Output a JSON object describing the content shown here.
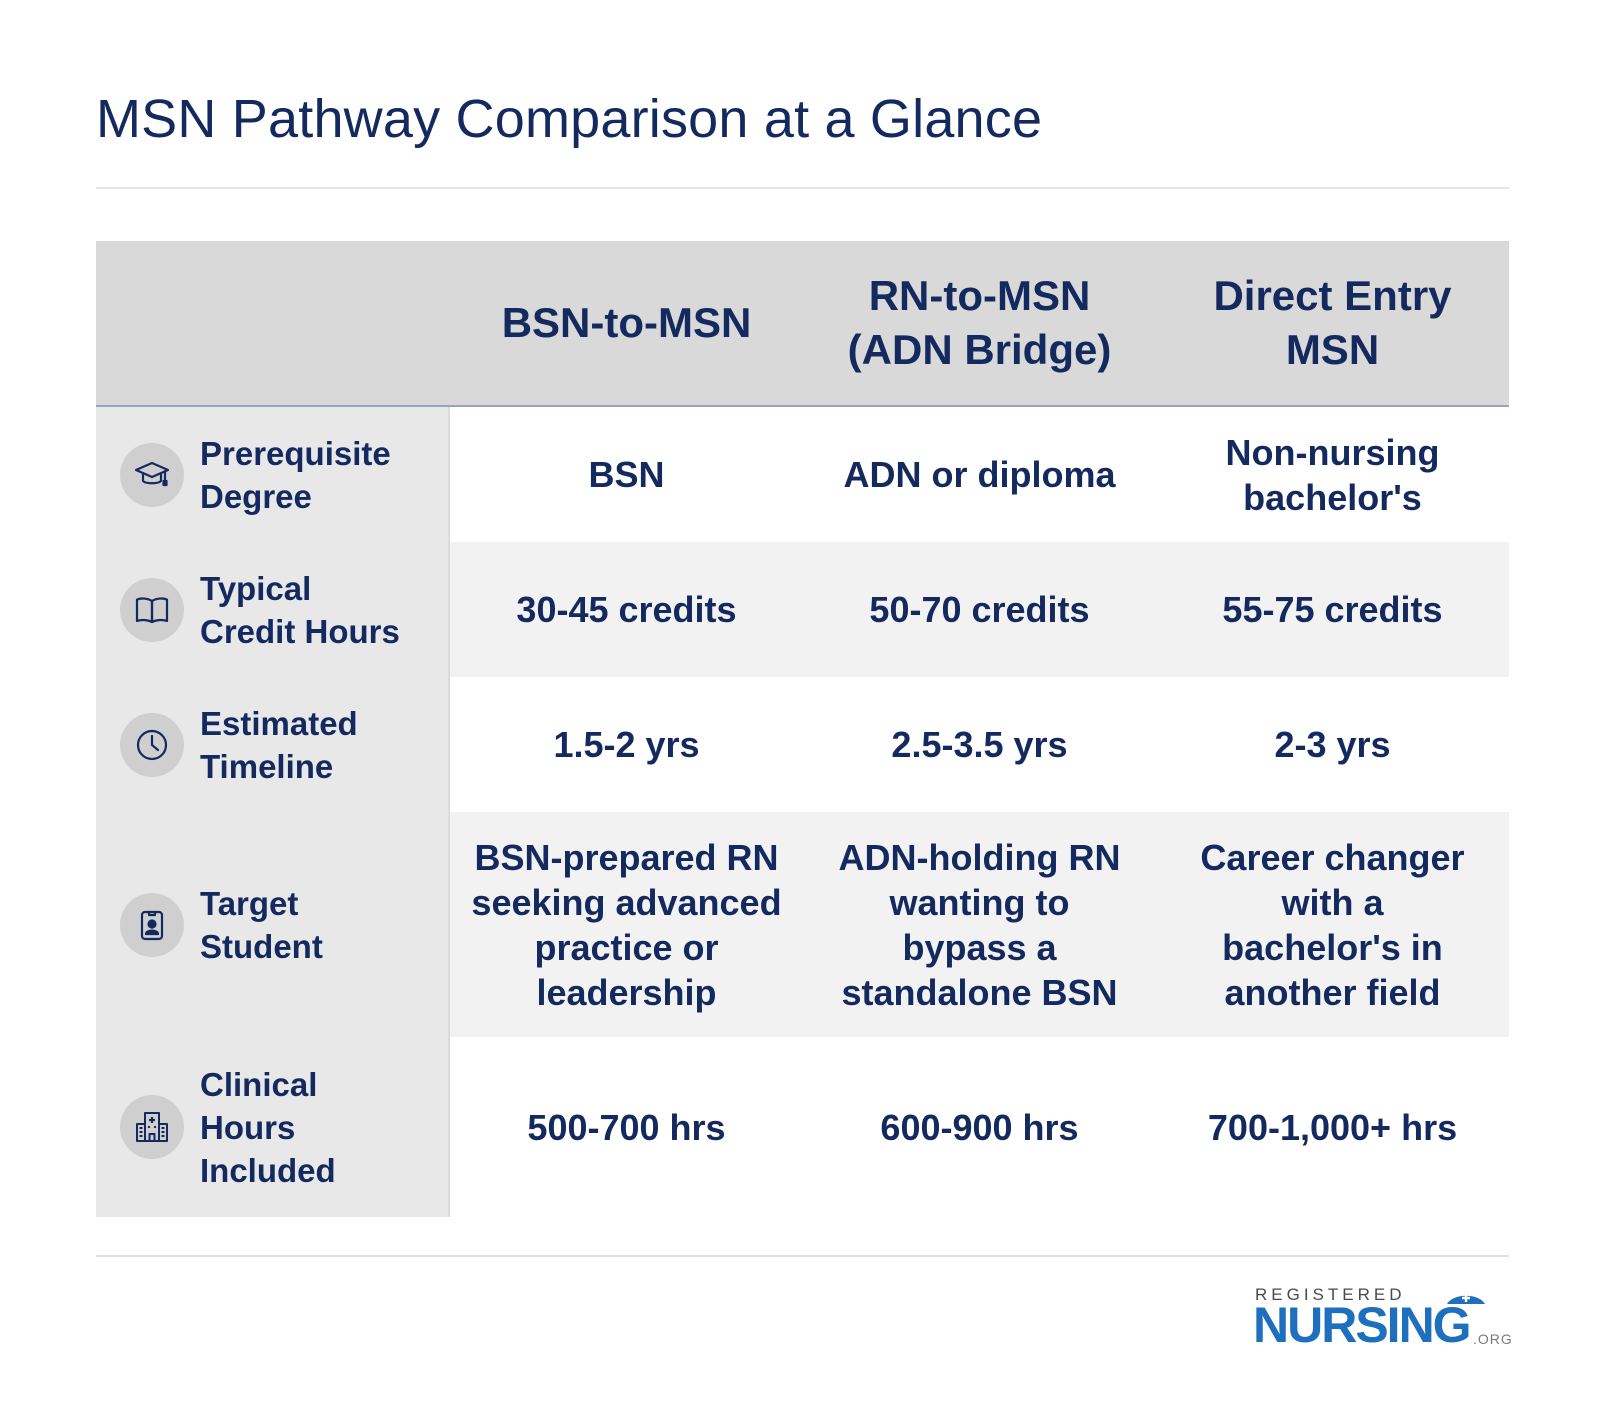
{
  "title": "MSN Pathway Comparison at a Glance",
  "header": {
    "columns": [
      [
        "BSN-to-MSN"
      ],
      [
        "RN-to-MSN",
        "(ADN Bridge)"
      ],
      [
        "Direct Entry",
        "MSN"
      ]
    ]
  },
  "rows": [
    {
      "icon": "graduation-cap-icon",
      "label": [
        "Prerequisite",
        "Degree"
      ],
      "values": [
        [
          "BSN"
        ],
        [
          "ADN or diploma"
        ],
        [
          "Non-nursing",
          "bachelor's"
        ]
      ]
    },
    {
      "icon": "open-book-icon",
      "label": [
        "Typical",
        "Credit Hours"
      ],
      "values": [
        [
          "30-45 credits"
        ],
        [
          "50-70 credits"
        ],
        [
          "55-75 credits"
        ]
      ]
    },
    {
      "icon": "clock-icon",
      "label": [
        "Estimated",
        "Timeline"
      ],
      "values": [
        [
          "1.5-2 yrs"
        ],
        [
          "2.5-3.5 yrs"
        ],
        [
          "2-3 yrs"
        ]
      ]
    },
    {
      "icon": "id-badge-icon",
      "label": [
        "Target",
        "Student"
      ],
      "values": [
        [
          "BSN-prepared RN",
          "seeking advanced",
          "practice or",
          "leadership"
        ],
        [
          "ADN-holding RN",
          "wanting to",
          "bypass a",
          "standalone BSN"
        ],
        [
          "Career changer",
          "with a",
          "bachelor's in",
          "another field"
        ]
      ]
    },
    {
      "icon": "hospital-icon",
      "label": [
        "Clinical",
        "Hours",
        "Included"
      ],
      "values": [
        [
          "500-700 hrs"
        ],
        [
          "600-900 hrs"
        ],
        [
          "700-1,000+ hrs"
        ]
      ]
    }
  ],
  "logo": {
    "top": "REGISTERED",
    "main": "NURSING",
    "suffix": ".ORG",
    "brand_color": "#1f6fbf"
  },
  "colors": {
    "text": "#14295e",
    "header_bg": "#d9d9d9",
    "label_bg": "#e8e8e8",
    "stripe_bg": "#f2f2f2"
  }
}
